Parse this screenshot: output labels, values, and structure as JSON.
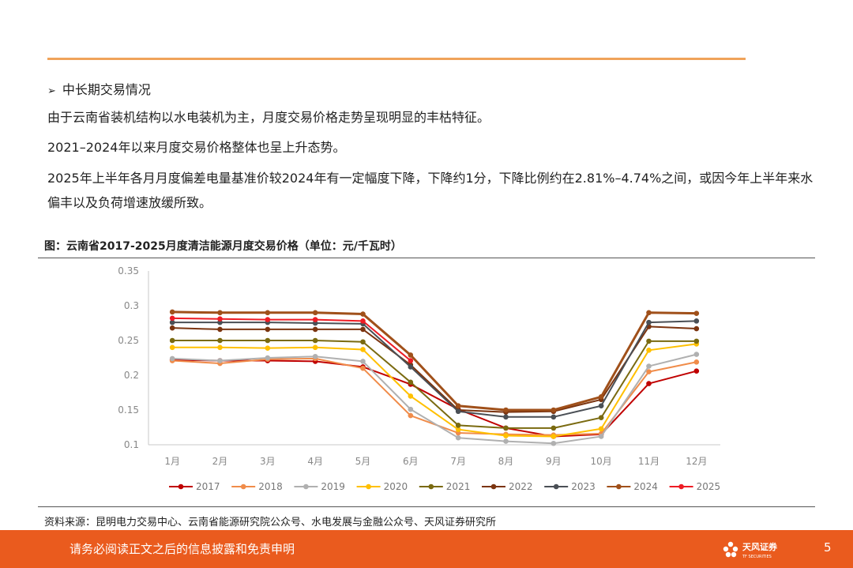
{
  "section_heading": "中长期交易情况",
  "paragraphs": {
    "p1": "由于云南省装机结构以水电装机为主，月度交易价格走势呈现明显的丰枯特征。",
    "p2": "2021–2024年以来月度交易价格整体也呈上升态势。",
    "p3": "2025年上半年各月月度偏差电量基准价较2024年有一定幅度下降，下降约1分，下降比例约在2.81%–4.74%之间，或因今年上半年来水偏丰以及负荷增速放缓所致。"
  },
  "figure_caption": "图：云南省2017-2025月度清洁能源月度交易价格（单位：元/千瓦时）",
  "source_note": "资料来源：昆明电力交易中心、云南省能源研究院公众号、水电发展与金融公众号、天风证券研究所",
  "footer": {
    "disclaimer": "请务必阅读正文之后的信息披露和免责申明",
    "logo_text": "天风证券",
    "logo_subtext": "TF SECURITIES",
    "page_number": "5"
  },
  "chart_data": {
    "type": "line",
    "title": "",
    "xlabel": "",
    "ylabel": "",
    "ylim": [
      0.1,
      0.35
    ],
    "yticks": [
      "0.35",
      "0.3",
      "0.25",
      "0.2",
      "0.15",
      "0.1"
    ],
    "grid": false,
    "legend_position": "bottom",
    "categories": [
      "1月",
      "2月",
      "3月",
      "4月",
      "5月",
      "6月",
      "7月",
      "8月",
      "9月",
      "10月",
      "11月",
      "12月"
    ],
    "series": [
      {
        "name": "2017",
        "color": "#c00000",
        "values": [
          0.222,
          0.221,
          0.221,
          0.22,
          0.212,
          0.187,
          0.151,
          0.124,
          0.112,
          0.115,
          0.188,
          0.206
        ]
      },
      {
        "name": "2018",
        "color": "#f08c4a",
        "values": [
          0.221,
          0.217,
          0.223,
          0.224,
          0.21,
          0.142,
          0.117,
          0.115,
          0.114,
          0.116,
          0.205,
          0.219
        ]
      },
      {
        "name": "2019",
        "color": "#b0b0b0",
        "values": [
          0.224,
          0.221,
          0.225,
          0.227,
          0.22,
          0.151,
          0.11,
          0.105,
          0.102,
          0.112,
          0.213,
          0.23
        ]
      },
      {
        "name": "2020",
        "color": "#ffc000",
        "values": [
          0.24,
          0.24,
          0.239,
          0.24,
          0.237,
          0.17,
          0.122,
          0.113,
          0.112,
          0.123,
          0.236,
          0.245
        ]
      },
      {
        "name": "2021",
        "color": "#7a6a10",
        "values": [
          0.25,
          0.25,
          0.25,
          0.25,
          0.248,
          0.19,
          0.128,
          0.124,
          0.124,
          0.139,
          0.249,
          0.249
        ]
      },
      {
        "name": "2022",
        "color": "#7b3410",
        "values": [
          0.268,
          0.266,
          0.266,
          0.266,
          0.266,
          0.215,
          0.15,
          0.147,
          0.148,
          0.165,
          0.27,
          0.267
        ]
      },
      {
        "name": "2023",
        "color": "#4a4f55",
        "values": [
          0.276,
          0.276,
          0.276,
          0.275,
          0.274,
          0.212,
          0.148,
          0.14,
          0.14,
          0.156,
          0.276,
          0.278
        ]
      },
      {
        "name": "2024",
        "color": "#a0501a",
        "values": [
          0.291,
          0.29,
          0.29,
          0.29,
          0.288,
          0.229,
          0.156,
          0.15,
          0.15,
          0.169,
          0.29,
          0.289
        ]
      },
      {
        "name": "2025",
        "color": "#ee1c25",
        "values": [
          0.282,
          0.281,
          0.28,
          0.28,
          0.278,
          0.221,
          null,
          null,
          null,
          null,
          null,
          null
        ]
      }
    ]
  }
}
